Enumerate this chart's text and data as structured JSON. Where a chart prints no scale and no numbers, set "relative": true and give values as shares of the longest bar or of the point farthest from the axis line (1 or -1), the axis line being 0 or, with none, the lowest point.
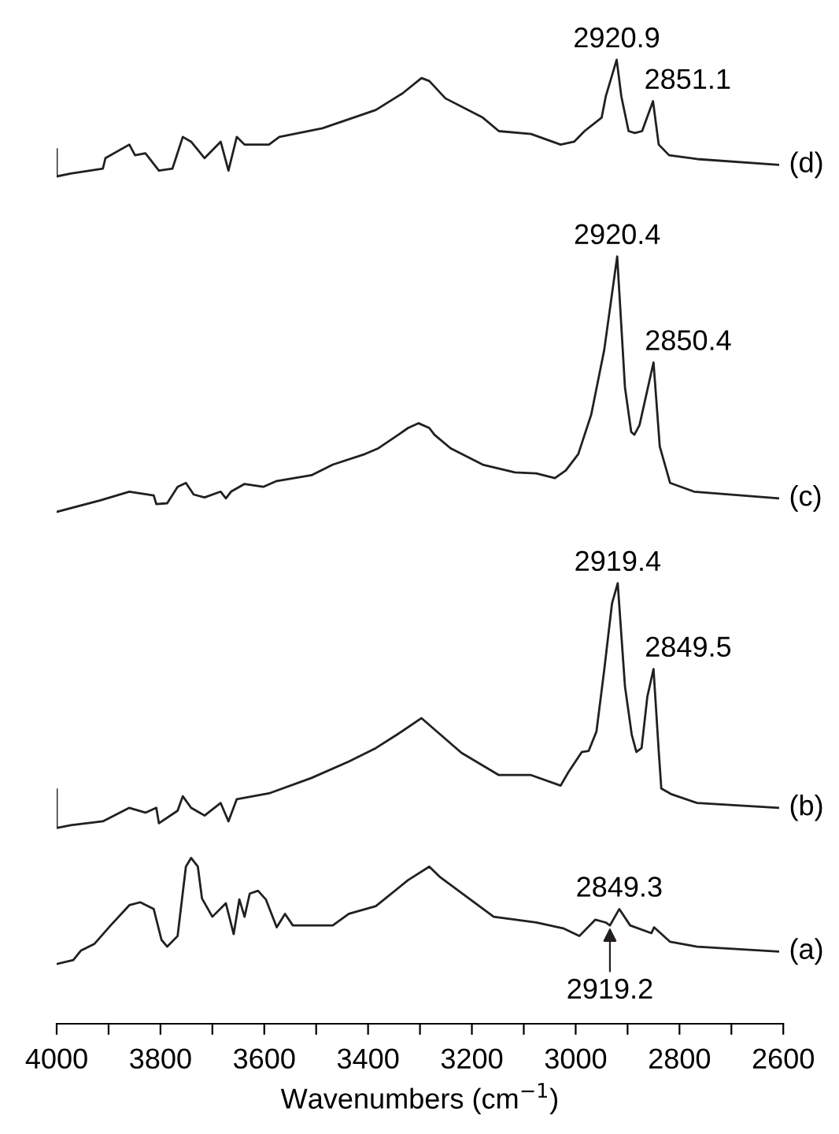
{
  "chart_data": {
    "type": "line",
    "relative": true,
    "xlabel": "Wavenumbers (cm$^{−1}$)",
    "xlim": [
      4000,
      2600
    ],
    "xticks": [
      4000,
      {
        "value": 3900,
        "label": null
      },
      3800,
      {
        "value": 3700,
        "label": null
      },
      3600,
      {
        "value": 3500,
        "label": null
      },
      3400,
      {
        "value": 3300,
        "label": null
      },
      3200,
      {
        "value": 3100,
        "label": null
      },
      3000,
      {
        "value": 2900,
        "label": null
      },
      2800,
      {
        "value": 2700,
        "label": null
      },
      2600
    ],
    "tick_labels": "x",
    "grid": false,
    "legend": false,
    "marker": "none",
    "line_style": "solid",
    "series": [
      {
        "name": "(a)",
        "color": "#231f20",
        "x": [
          4000,
          3968,
          3953,
          3927,
          3896,
          3860,
          3839,
          3813,
          3798,
          3787,
          3767,
          3751,
          3741,
          3728,
          3720,
          3700,
          3674,
          3659,
          3648,
          3638,
          3628,
          3612,
          3597,
          3576,
          3560,
          3545,
          3468,
          3437,
          3385,
          3323,
          3282,
          3261,
          3158,
          3076,
          3024,
          2993,
          2962,
          2942,
          2934,
          2916,
          2895,
          2854,
          2849,
          2818,
          2766,
          2610
        ],
        "values": [
          0.062,
          0.066,
          0.076,
          0.083,
          0.102,
          0.123,
          0.126,
          0.119,
          0.087,
          0.08,
          0.091,
          0.163,
          0.172,
          0.163,
          0.13,
          0.111,
          0.125,
          0.093,
          0.129,
          0.111,
          0.135,
          0.138,
          0.129,
          0.1,
          0.114,
          0.102,
          0.102,
          0.114,
          0.122,
          0.149,
          0.163,
          0.152,
          0.111,
          0.105,
          0.099,
          0.091,
          0.108,
          0.105,
          0.102,
          0.119,
          0.102,
          0.094,
          0.1,
          0.085,
          0.08,
          0.075
        ]
      },
      {
        "name": "(b)",
        "color": "#231f20",
        "x": [
          4000,
          4000,
          3973,
          3911,
          3860,
          3829,
          3808,
          3803,
          3767,
          3757,
          3741,
          3715,
          3684,
          3669,
          3653,
          3591,
          3509,
          3437,
          3385,
          3344,
          3297,
          3220,
          3148,
          3086,
          3029,
          3014,
          2988,
          2975,
          2960,
          2945,
          2930,
          2919,
          2905,
          2892,
          2883,
          2873,
          2862,
          2850,
          2840,
          2835,
          2815,
          2766,
          2610
        ],
        "values": [
          0.243,
          0.203,
          0.206,
          0.21,
          0.224,
          0.219,
          0.224,
          0.208,
          0.221,
          0.236,
          0.224,
          0.216,
          0.229,
          0.21,
          0.233,
          0.239,
          0.255,
          0.272,
          0.286,
          0.3,
          0.317,
          0.281,
          0.258,
          0.258,
          0.247,
          0.261,
          0.282,
          0.283,
          0.303,
          0.367,
          0.436,
          0.457,
          0.35,
          0.3,
          0.282,
          0.286,
          0.339,
          0.368,
          0.283,
          0.244,
          0.238,
          0.229,
          0.224
        ]
      },
      {
        "name": "(c)",
        "color": "#231f20",
        "x": [
          4000,
          3916,
          3860,
          3813,
          3808,
          3787,
          3767,
          3751,
          3736,
          3715,
          3684,
          3674,
          3664,
          3638,
          3602,
          3576,
          3509,
          3468,
          3406,
          3380,
          3339,
          3323,
          3303,
          3282,
          3272,
          3241,
          3179,
          3117,
          3076,
          3040,
          3019,
          2995,
          2970,
          2945,
          2920,
          2905,
          2893,
          2887,
          2877,
          2850,
          2838,
          2818,
          2772,
          2610
        ],
        "values": [
          0.531,
          0.543,
          0.552,
          0.548,
          0.539,
          0.54,
          0.557,
          0.561,
          0.549,
          0.546,
          0.552,
          0.545,
          0.552,
          0.56,
          0.557,
          0.563,
          0.569,
          0.58,
          0.591,
          0.597,
          0.612,
          0.618,
          0.623,
          0.618,
          0.611,
          0.597,
          0.58,
          0.572,
          0.571,
          0.566,
          0.574,
          0.591,
          0.632,
          0.699,
          0.796,
          0.66,
          0.614,
          0.611,
          0.621,
          0.686,
          0.599,
          0.561,
          0.552,
          0.545
        ]
      },
      {
        "name": "(d)",
        "color": "#231f20",
        "x": [
          4000,
          4000,
          3973,
          3911,
          3906,
          3860,
          3849,
          3829,
          3803,
          3777,
          3757,
          3741,
          3715,
          3684,
          3669,
          3653,
          3638,
          3591,
          3571,
          3488,
          3385,
          3334,
          3297,
          3282,
          3251,
          3179,
          3148,
          3086,
          3029,
          3003,
          2983,
          2950,
          2942,
          2921,
          2912,
          2898,
          2886,
          2872,
          2851,
          2840,
          2820,
          2766,
          2610
        ],
        "values": [
          0.907,
          0.879,
          0.882,
          0.887,
          0.898,
          0.912,
          0.901,
          0.903,
          0.885,
          0.887,
          0.92,
          0.915,
          0.898,
          0.915,
          0.885,
          0.92,
          0.912,
          0.912,
          0.92,
          0.929,
          0.948,
          0.965,
          0.981,
          0.978,
          0.96,
          0.94,
          0.926,
          0.923,
          0.912,
          0.915,
          0.926,
          0.94,
          0.962,
          1.0,
          0.962,
          0.926,
          0.924,
          0.926,
          0.957,
          0.912,
          0.901,
          0.897,
          0.891
        ]
      }
    ],
    "annotations": [
      {
        "text": "2920.9",
        "x": 2921,
        "y": 1.0
      },
      {
        "text": "2851.1",
        "x": 2851,
        "y": 0.957
      },
      {
        "text": "2920.4",
        "x": 2920,
        "y": 0.796
      },
      {
        "text": "2850.4",
        "x": 2850,
        "y": 0.686
      },
      {
        "text": "2919.4",
        "x": 2919,
        "y": 0.457
      },
      {
        "text": "2849.5",
        "x": 2850,
        "y": 0.368
      },
      {
        "text": "2849.3",
        "x": 2916,
        "y": 0.119
      },
      {
        "text": "2919.2",
        "x": 2934,
        "y": 0.102
      }
    ]
  }
}
